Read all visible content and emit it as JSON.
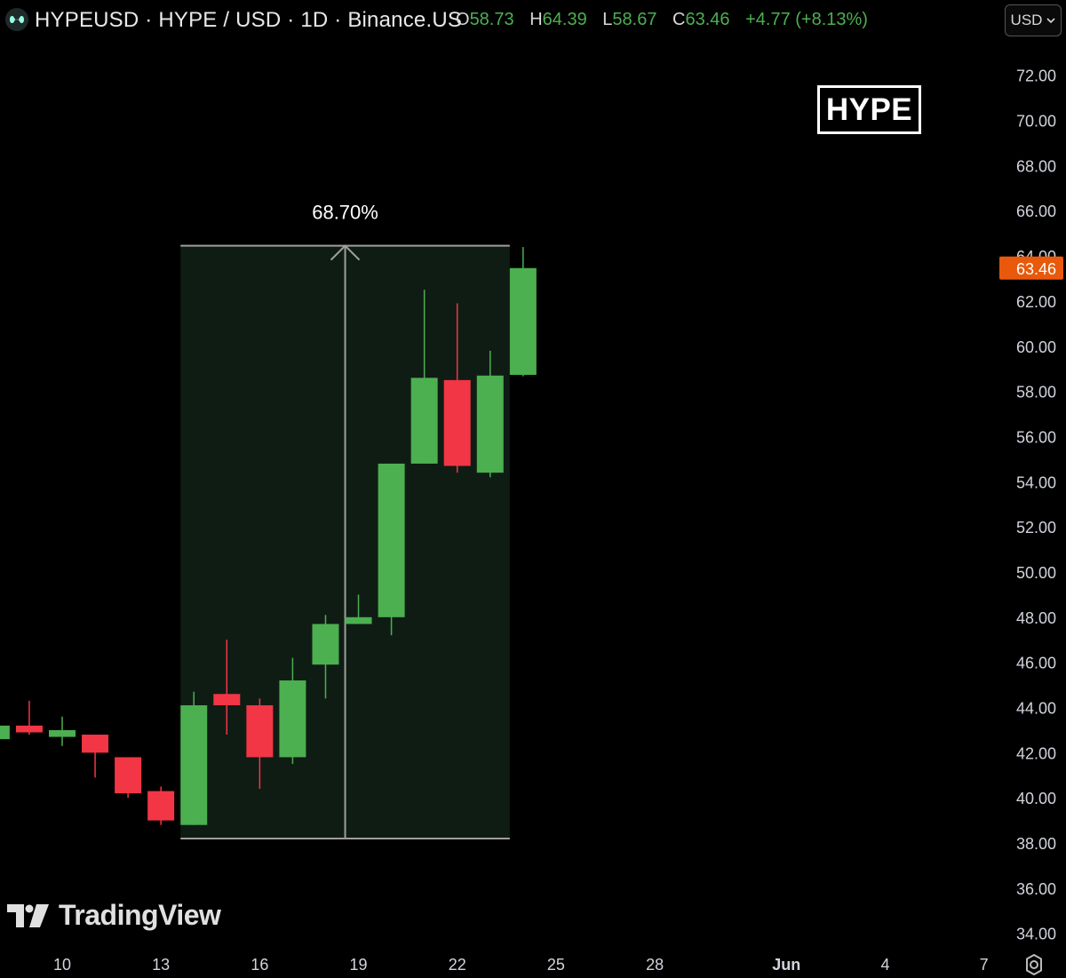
{
  "header": {
    "title": "HYPEUSD · HYPE / USD · 1D · Binance.US",
    "ohlc": [
      {
        "key": "O",
        "value": "58.73"
      },
      {
        "key": "H",
        "value": "64.39"
      },
      {
        "key": "L",
        "value": "58.67"
      },
      {
        "key": "C",
        "value": "63.46"
      }
    ],
    "change": "+4.77 (+8.13%)",
    "currency": "USD"
  },
  "badge": "HYPE",
  "branding": "TradingView",
  "colors": {
    "up": "#4caf50",
    "down": "#f23645",
    "price_label_bg": "#e8590c",
    "range_fill": "#0f1c14",
    "range_line": "#9e9e9e"
  },
  "icons": {
    "symbol": "hyperliquid-logo-icon",
    "currency_dropdown": "chevron-down-icon",
    "settings": "gear-icon"
  },
  "chart_data": {
    "type": "candlestick",
    "ylim": [
      33.4,
      73.6
    ],
    "y_ticks": [
      "72.00",
      "70.00",
      "68.00",
      "66.00",
      "64.00",
      "62.00",
      "60.00",
      "58.00",
      "56.00",
      "54.00",
      "52.00",
      "50.00",
      "48.00",
      "46.00",
      "44.00",
      "42.00",
      "40.00",
      "38.00",
      "36.00",
      "34.00"
    ],
    "x_ticks": [
      {
        "label": "10",
        "day": 10
      },
      {
        "label": "13",
        "day": 13
      },
      {
        "label": "16",
        "day": 16
      },
      {
        "label": "19",
        "day": 19
      },
      {
        "label": "22",
        "day": 22
      },
      {
        "label": "25",
        "day": 25
      },
      {
        "label": "28",
        "day": 28
      },
      {
        "label": "Jun",
        "day": 32,
        "bold": true
      },
      {
        "label": "4",
        "day": 35
      },
      {
        "label": "7",
        "day": 38
      }
    ],
    "last_price": "63.46",
    "candles": [
      {
        "date": "May 8",
        "day": 8,
        "open": 42.6,
        "high": 43.2,
        "low": 42.6,
        "close": 43.2
      },
      {
        "date": "May 9",
        "day": 9,
        "open": 43.2,
        "high": 44.3,
        "low": 42.8,
        "close": 42.9
      },
      {
        "date": "May 10",
        "day": 10,
        "open": 42.7,
        "high": 43.6,
        "low": 42.3,
        "close": 43.0
      },
      {
        "date": "May 11",
        "day": 11,
        "open": 42.8,
        "high": 42.8,
        "low": 40.9,
        "close": 42.0
      },
      {
        "date": "May 12",
        "day": 12,
        "open": 41.8,
        "high": 41.8,
        "low": 40.0,
        "close": 40.2
      },
      {
        "date": "May 13",
        "day": 13,
        "open": 40.3,
        "high": 40.5,
        "low": 38.8,
        "close": 39.0
      },
      {
        "date": "May 14",
        "day": 14,
        "open": 38.8,
        "high": 44.7,
        "low": 38.8,
        "close": 44.1
      },
      {
        "date": "May 15",
        "day": 15,
        "open": 44.6,
        "high": 47.0,
        "low": 42.8,
        "close": 44.1
      },
      {
        "date": "May 16",
        "day": 16,
        "open": 44.1,
        "high": 44.4,
        "low": 40.4,
        "close": 41.8
      },
      {
        "date": "May 17",
        "day": 17,
        "open": 41.8,
        "high": 46.2,
        "low": 41.5,
        "close": 45.2
      },
      {
        "date": "May 18",
        "day": 18,
        "open": 45.9,
        "high": 48.1,
        "low": 44.4,
        "close": 47.7
      },
      {
        "date": "May 19",
        "day": 19,
        "open": 47.7,
        "high": 49.0,
        "low": 47.7,
        "close": 48.0
      },
      {
        "date": "May 20",
        "day": 20,
        "open": 48.0,
        "high": 54.8,
        "low": 47.2,
        "close": 54.8
      },
      {
        "date": "May 21",
        "day": 21,
        "open": 54.8,
        "high": 62.5,
        "low": 54.8,
        "close": 58.6
      },
      {
        "date": "May 22",
        "day": 22,
        "open": 58.5,
        "high": 61.9,
        "low": 54.4,
        "close": 54.7
      },
      {
        "date": "May 23",
        "day": 23,
        "open": 54.4,
        "high": 59.8,
        "low": 54.2,
        "close": 58.7
      },
      {
        "date": "May 24",
        "day": 24,
        "open": 58.73,
        "high": 64.39,
        "low": 58.67,
        "close": 63.46
      }
    ],
    "range_annotation": {
      "label": "68.70%",
      "day_start": 14,
      "day_end": 24,
      "price_low": 38.2,
      "price_high": 64.45
    }
  }
}
